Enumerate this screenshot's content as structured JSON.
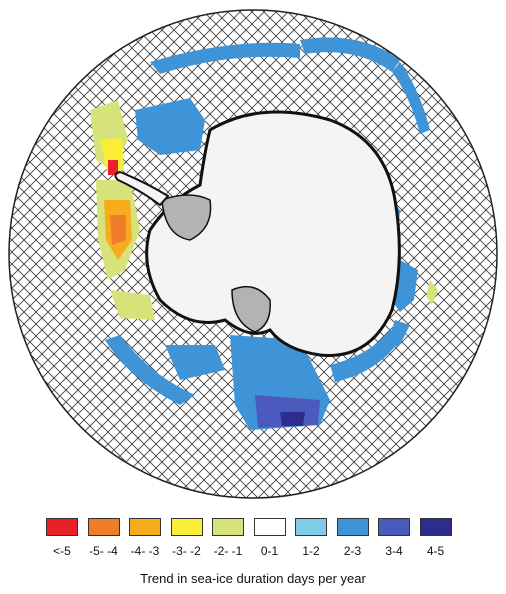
{
  "map": {
    "colors": {
      "ocean_hatch": "#3a3a3a",
      "ice_shelf": "#b3b3b3",
      "antarctica": "#f4f4f4",
      "coast": "#111111"
    }
  },
  "legend": {
    "title": "Trend in sea-ice duration days per year",
    "classes": [
      {
        "label": "<-5",
        "color": "#e8202a"
      },
      {
        "label": "-5- -4",
        "color": "#f07d2a"
      },
      {
        "label": "-4- -3",
        "color": "#f6ac1c"
      },
      {
        "label": "-3- -2",
        "color": "#fbee38"
      },
      {
        "label": "-2- -1",
        "color": "#d7e27a"
      },
      {
        "label": "0-1",
        "color": "#ffffff"
      },
      {
        "label": "1-2",
        "color": "#7fcbe8"
      },
      {
        "label": "2-3",
        "color": "#3f94d8"
      },
      {
        "label": "3-4",
        "color": "#4b5bbd"
      },
      {
        "label": "4-5",
        "color": "#2c2d8c"
      }
    ]
  }
}
